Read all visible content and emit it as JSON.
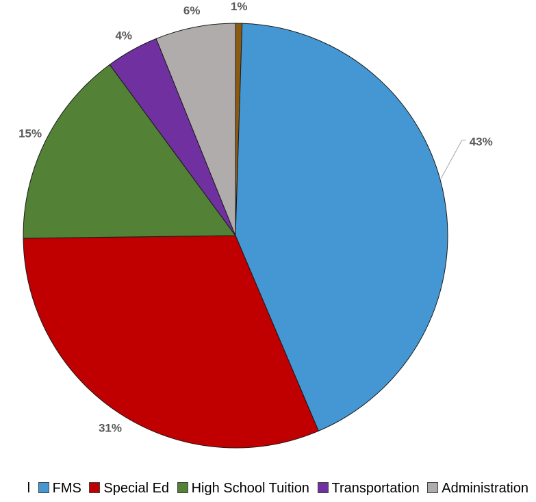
{
  "chart_data": {
    "type": "pie",
    "slices": [
      {
        "name": "Cultural",
        "value": 0.5,
        "label": "1%",
        "color": "#8a5a12"
      },
      {
        "name": "FMS",
        "value": 43.1,
        "label": "43%",
        "color": "#4597d3"
      },
      {
        "name": "Special Ed",
        "value": 31.2,
        "label": "31%",
        "color": "#c00000"
      },
      {
        "name": "High School Tuition",
        "value": 15.1,
        "label": "15%",
        "color": "#538135"
      },
      {
        "name": "Transportation",
        "value": 4.0,
        "label": "4%",
        "color": "#7030a0"
      },
      {
        "name": "Administration",
        "value": 6.1,
        "label": "6%",
        "color": "#b0acac"
      }
    ],
    "legend": {
      "position": "bottom",
      "visible_text": [
        "l",
        "FMS",
        "Special Ed",
        "High School Tuition",
        "Transportation",
        "Administration"
      ]
    }
  }
}
